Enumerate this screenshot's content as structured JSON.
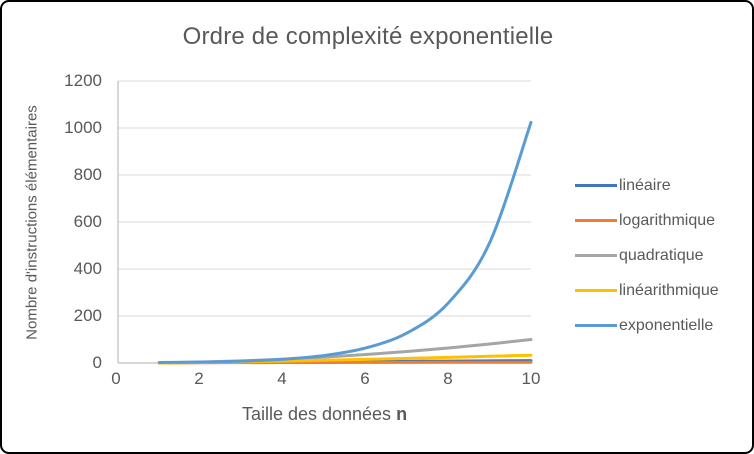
{
  "chart_data": {
    "type": "line",
    "title": "Ordre de complexité exponentielle",
    "xlabel_main": "Taille des données",
    "xlabel_bold": "n",
    "ylabel": "Nombre d'instructions élémentaires",
    "x": [
      1,
      2,
      3,
      4,
      5,
      6,
      7,
      8,
      9,
      10
    ],
    "xlim": [
      0,
      10
    ],
    "ylim": [
      0,
      1200
    ],
    "xticks": [
      0,
      2,
      4,
      6,
      8,
      10
    ],
    "yticks": [
      0,
      200,
      400,
      600,
      800,
      1000,
      1200
    ],
    "grid": "horizontal",
    "legend_position": "right",
    "series": [
      {
        "name": "linéaire",
        "color": "#4472C4",
        "values": [
          1,
          2,
          3,
          4,
          5,
          6,
          7,
          8,
          9,
          10
        ]
      },
      {
        "name": "logarithmique",
        "color": "#ED7D31",
        "values": [
          0,
          1,
          1.58,
          2,
          2.32,
          2.58,
          2.81,
          3,
          3.17,
          3.32
        ]
      },
      {
        "name": "quadratique",
        "color": "#A5A5A5",
        "values": [
          1,
          4,
          9,
          16,
          25,
          36,
          49,
          64,
          81,
          100
        ]
      },
      {
        "name": "linéarithmique",
        "color": "#FFC000",
        "values": [
          0,
          2,
          4.75,
          8,
          11.61,
          15.51,
          19.65,
          24,
          28.53,
          33.22
        ]
      },
      {
        "name": "exponentielle",
        "color": "#5B9BD5",
        "values": [
          2,
          4,
          8,
          16,
          32,
          64,
          128,
          256,
          512,
          1024
        ]
      }
    ],
    "text_color": "#595959",
    "gridline_color": "#D9D9D9",
    "axis_line_color": "#BFBFBF",
    "background_color": "#FFFFFF",
    "frame_border_color": "#000000"
  }
}
